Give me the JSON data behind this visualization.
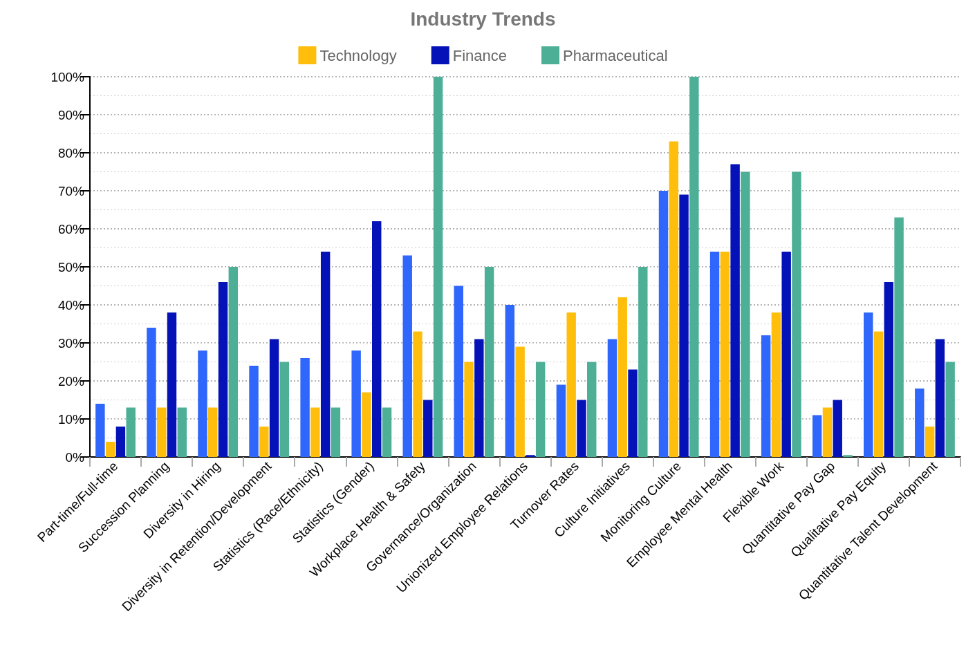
{
  "chart_data": {
    "type": "bar",
    "title": "Industry Trends",
    "categories": [
      "Part-time/Full-time",
      "Succession Planning",
      "Diversity in Hiring",
      "Diversity in Retention/Development",
      "Statistics (Race/Ethnicity)",
      "Statistics (Gender)",
      "Workplace Health & Safety",
      "Governance/Organization",
      "Unionized Employee Relations",
      "Turnover Rates",
      "Culture Initiatives",
      "Monitoring Culture",
      "Employee Mental Health",
      "Flexible Work",
      "Quantitative Pay Gap",
      "Qualitative Pay Equity",
      "Quantitative Talent Development"
    ],
    "series": [
      {
        "color": "#2f66fb",
        "values": [
          14,
          34,
          28,
          24,
          26,
          28,
          53,
          45,
          40,
          19,
          31,
          70,
          54,
          32,
          11,
          38,
          18
        ]
      },
      {
        "name": "Technology",
        "color": "#ffbe0c",
        "values": [
          4,
          13,
          13,
          8,
          13,
          17,
          33,
          25,
          29,
          38,
          42,
          83,
          54,
          38,
          13,
          33,
          8
        ]
      },
      {
        "name": "Finance",
        "color": "#0412b8",
        "values": [
          8,
          38,
          46,
          31,
          54,
          62,
          15,
          31,
          0.5,
          15,
          23,
          69,
          77,
          54,
          15,
          46,
          31
        ]
      },
      {
        "name": "Pharmaceutical",
        "color": "#4caf96",
        "values": [
          13,
          13,
          50,
          25,
          13,
          13,
          100,
          50,
          25,
          25,
          50,
          100,
          75,
          75,
          0.5,
          63,
          25
        ]
      }
    ],
    "ylim": [
      0,
      100
    ],
    "yticks": [
      {
        "value": 0,
        "label": "0%"
      },
      {
        "value": 10,
        "label": "10%"
      },
      {
        "value": 20,
        "label": "20%"
      },
      {
        "value": 30,
        "label": "30%"
      },
      {
        "value": 40,
        "label": "40%"
      },
      {
        "value": 50,
        "label": "50%"
      },
      {
        "value": 60,
        "label": "60%"
      },
      {
        "value": 70,
        "label": "70%"
      },
      {
        "value": 80,
        "label": "80%"
      },
      {
        "value": 90,
        "label": "90%"
      },
      {
        "value": 100,
        "label": "100%"
      }
    ],
    "grid": "y",
    "legend": "top"
  }
}
